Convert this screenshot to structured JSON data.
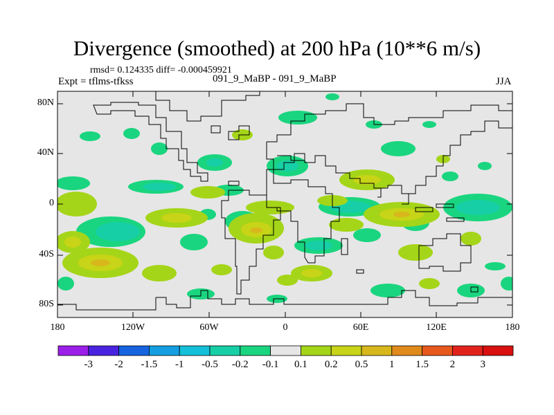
{
  "title": "Divergence (smoothed) at 200 hPa (10**6 m/s)",
  "stats": "rmsd= 0.124335  diff= -0.000459921",
  "experiment": "Expt = tflms-tfkss",
  "subtitle": "091_9_MaBP - 091_9_MaBP",
  "season": "JJA",
  "y_ticks": [
    "80N",
    "40N",
    "0",
    "40S",
    "80S"
  ],
  "x_ticks": [
    "180",
    "120W",
    "60W",
    "0",
    "60E",
    "120E",
    "180"
  ],
  "colorbar": {
    "labels": [
      "-3",
      "-2",
      "-1.5",
      "-1",
      "-0.5",
      "-0.2",
      "-0.1",
      "0.1",
      "0.2",
      "0.5",
      "1",
      "1.5",
      "2",
      "3"
    ],
    "colors": [
      "#9b1fe8",
      "#4a23e0",
      "#1664e0",
      "#129ee0",
      "#14bfd9",
      "#17cfa6",
      "#1ad57f",
      "#e6e6e6",
      "#a5d518",
      "#c8d417",
      "#d8b71c",
      "#e08a1c",
      "#e6581b",
      "#e2231c",
      "#d8100f"
    ]
  },
  "colors": {
    "land_outline": "#000000",
    "background": "#e6e6e6"
  }
}
